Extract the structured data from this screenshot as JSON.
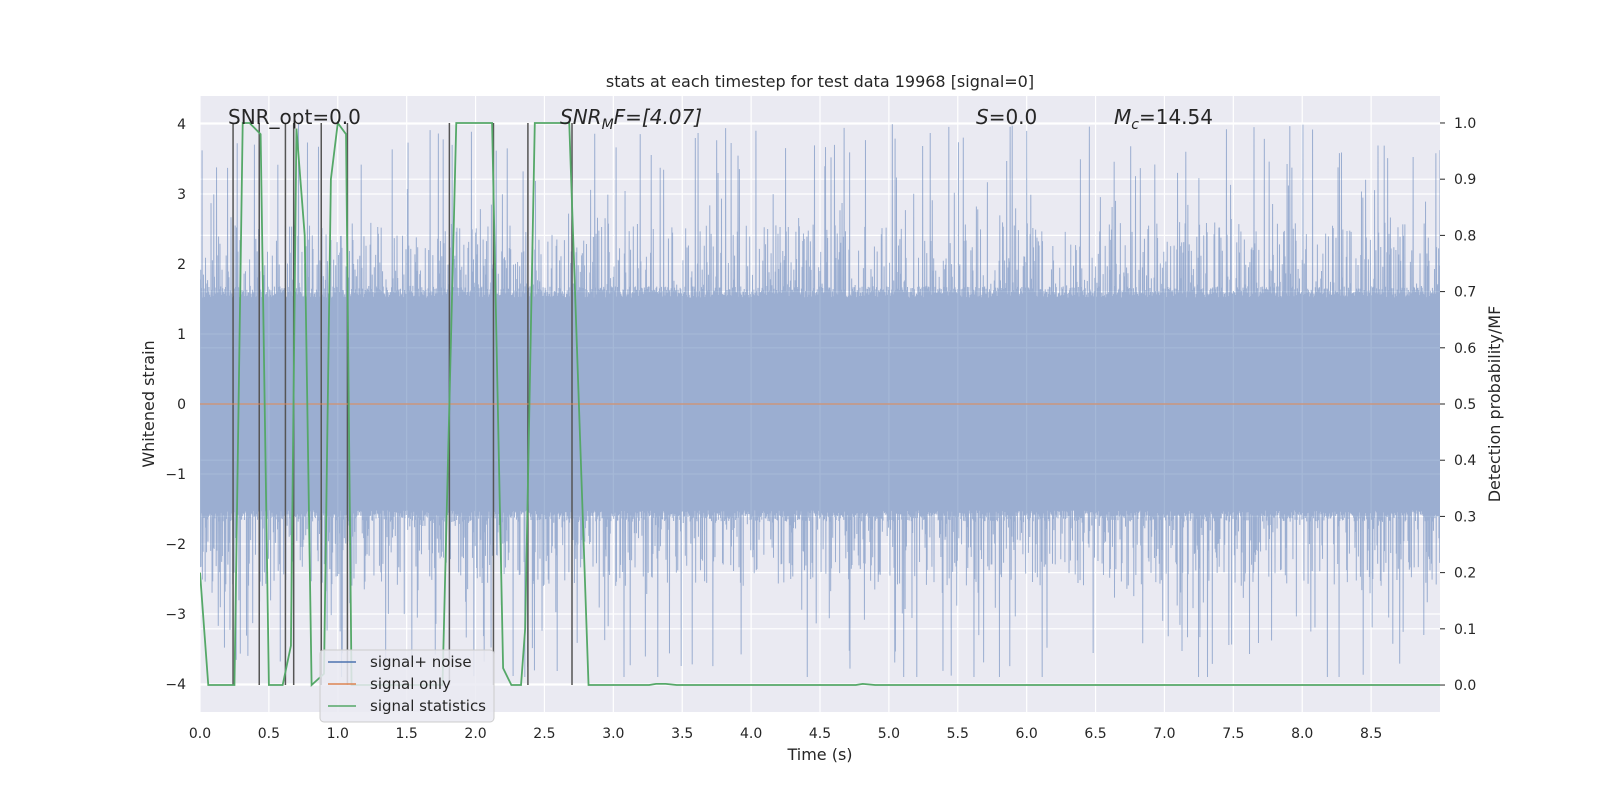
{
  "chart_data": {
    "type": "line",
    "title": "stats at each timestep for test data 19968 [signal=0]",
    "xlabel": "Time (s)",
    "ylabel": "Whitened strain",
    "y2label": "Detection probability/MF",
    "xlim": [
      0,
      9.0
    ],
    "ylim": [
      -4.4,
      4.4
    ],
    "y2lim": [
      -0.048,
      1.048
    ],
    "xticks": [
      0.0,
      0.5,
      1.0,
      1.5,
      2.0,
      2.5,
      3.0,
      3.5,
      4.0,
      4.5,
      5.0,
      5.5,
      6.0,
      6.5,
      7.0,
      7.5,
      8.0,
      8.5
    ],
    "xtick_labels": [
      "0.0",
      "0.5",
      "1.0",
      "1.5",
      "2.0",
      "2.5",
      "3.0",
      "3.5",
      "4.0",
      "4.5",
      "5.0",
      "5.5",
      "6.0",
      "6.5",
      "7.0",
      "7.5",
      "8.0",
      "8.5"
    ],
    "yticks": [
      -4,
      -3,
      -2,
      -1,
      0,
      1,
      2,
      3,
      4
    ],
    "ytick_labels": [
      "−4",
      "−3",
      "−2",
      "−1",
      "0",
      "1",
      "2",
      "3",
      "4"
    ],
    "y2ticks": [
      0.0,
      0.1,
      0.2,
      0.3,
      0.4,
      0.5,
      0.6,
      0.7,
      0.8,
      0.9,
      1.0
    ],
    "y2tick_labels": [
      "0.0",
      "0.1",
      "0.2",
      "0.3",
      "0.4",
      "0.5",
      "0.6",
      "0.7",
      "0.8",
      "0.9",
      "1.0"
    ],
    "grid": true,
    "legend": {
      "location": "lower-left",
      "entries": [
        {
          "label": "signal+ noise",
          "color": "#4c72b0"
        },
        {
          "label": "signal only",
          "color": "#dd8452"
        },
        {
          "label": "signal statistics",
          "color": "#55a868"
        }
      ]
    },
    "annotations": {
      "snr_opt": "SNR_opt=0.0",
      "snr_mf_main": "SNR",
      "snr_mf_sub": "M",
      "snr_mf_rest": "F=[4.07]",
      "s_main": "S",
      "s_rest": "=0.0",
      "mc_main": "M",
      "mc_sub": "c",
      "mc_rest": "=14.54"
    },
    "series": [
      {
        "name": "signal+ noise",
        "color": "#4c72b0",
        "axis": "left",
        "noise": {
          "t_start": 0.0,
          "t_end": 9.0,
          "dense_band": 1.6,
          "peak_max": 4.0,
          "peak_min": -3.9,
          "typical_peak": 2.6
        }
      },
      {
        "name": "signal only",
        "color": "#dd8452",
        "axis": "left",
        "x": [
          0.0,
          9.0
        ],
        "y": [
          0.0,
          0.0
        ]
      },
      {
        "name": "signal statistics",
        "color": "#55a868",
        "axis": "right",
        "x": [
          0.0,
          0.06,
          0.25,
          0.31,
          0.36,
          0.44,
          0.5,
          0.6,
          0.66,
          0.7,
          0.76,
          0.81,
          0.9,
          0.95,
          1.0,
          1.06,
          1.1,
          1.56,
          1.76,
          1.86,
          1.96,
          2.06,
          2.12,
          2.2,
          2.26,
          2.33,
          2.36,
          2.43,
          2.51,
          2.68,
          2.82,
          2.96,
          3.16,
          3.26,
          3.31,
          3.38,
          3.46,
          4.5,
          4.76,
          4.81,
          4.9,
          9.0
        ],
        "y": [
          0.2,
          0.0,
          0.0,
          1.0,
          1.0,
          0.98,
          0.0,
          0.0,
          0.07,
          0.99,
          0.8,
          0.0,
          0.02,
          0.9,
          1.0,
          0.98,
          0.0,
          0.0,
          0.0,
          1.0,
          1.0,
          1.0,
          1.0,
          0.03,
          0.0,
          0.0,
          0.1,
          1.0,
          1.0,
          1.0,
          0.0,
          0.0,
          0.0,
          0.0,
          0.002,
          0.002,
          0.0,
          0.0,
          0.0,
          0.002,
          0.0,
          0.0
        ]
      },
      {
        "name": "event markers",
        "color": "#555555",
        "axis": "right",
        "x": [
          0.24,
          0.43,
          0.62,
          0.68,
          0.88,
          1.07,
          1.81,
          2.13,
          2.38,
          2.7
        ],
        "y_range": [
          0.0,
          1.0
        ]
      }
    ]
  }
}
